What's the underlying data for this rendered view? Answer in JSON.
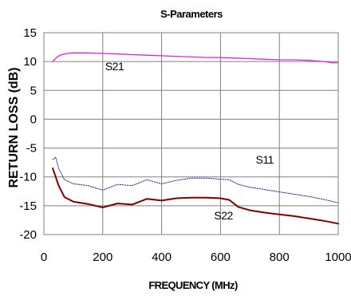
{
  "chart_data": {
    "type": "line",
    "title": "S-Parameters",
    "xlabel": "FREQUENCY (MHz)",
    "ylabel": "RETURN LOSS (dB)",
    "xlim": [
      0,
      1000
    ],
    "ylim": [
      -20,
      15
    ],
    "xticks": [
      0,
      200,
      400,
      600,
      800,
      1000
    ],
    "yticks": [
      15,
      10,
      5,
      0,
      -5,
      -10,
      -15,
      -20
    ],
    "grid": true,
    "legend": "none",
    "series": [
      {
        "name": "S21",
        "color": "#e020e0",
        "style": "solid",
        "x": [
          30,
          45,
          60,
          80,
          100,
          150,
          200,
          250,
          300,
          350,
          400,
          450,
          500,
          550,
          600,
          650,
          700,
          750,
          800,
          850,
          900,
          950,
          980,
          1000
        ],
        "y": [
          10.0,
          10.8,
          11.2,
          11.4,
          11.5,
          11.5,
          11.4,
          11.3,
          11.2,
          11.1,
          11.0,
          10.9,
          10.8,
          10.7,
          10.7,
          10.6,
          10.5,
          10.4,
          10.3,
          10.3,
          10.2,
          10.0,
          9.8,
          9.8
        ]
      },
      {
        "name": "S11",
        "color": "#1f2f90",
        "style": "dotted",
        "x": [
          30,
          40,
          50,
          70,
          100,
          150,
          200,
          250,
          300,
          350,
          400,
          450,
          500,
          550,
          600,
          630,
          660,
          700,
          750,
          800,
          850,
          900,
          950,
          1000
        ],
        "y": [
          -7.0,
          -6.6,
          -8.5,
          -10.5,
          -11.2,
          -11.5,
          -12.3,
          -11.3,
          -11.5,
          -10.5,
          -11.2,
          -10.6,
          -10.2,
          -10.2,
          -10.4,
          -10.5,
          -11.3,
          -11.8,
          -12.2,
          -12.6,
          -13.0,
          -13.4,
          -13.9,
          -14.5
        ]
      },
      {
        "name": "S22",
        "color": "#800000",
        "style": "solid",
        "x": [
          30,
          40,
          50,
          70,
          100,
          150,
          200,
          250,
          300,
          350,
          400,
          450,
          500,
          550,
          600,
          630,
          660,
          700,
          750,
          800,
          850,
          900,
          950,
          1000
        ],
        "y": [
          -8.5,
          -10.0,
          -11.5,
          -13.5,
          -14.3,
          -14.7,
          -15.3,
          -14.6,
          -14.8,
          -13.8,
          -14.1,
          -13.7,
          -13.6,
          -13.6,
          -13.7,
          -14.0,
          -15.2,
          -15.8,
          -16.2,
          -16.5,
          -16.8,
          -17.2,
          -17.6,
          -18.1
        ]
      }
    ],
    "annotations": [
      {
        "text": "S21",
        "x": 240,
        "y": 8.5
      },
      {
        "text": "S11",
        "x": 750,
        "y": -7.7
      },
      {
        "text": "S22",
        "x": 610,
        "y": -17.4
      }
    ]
  }
}
